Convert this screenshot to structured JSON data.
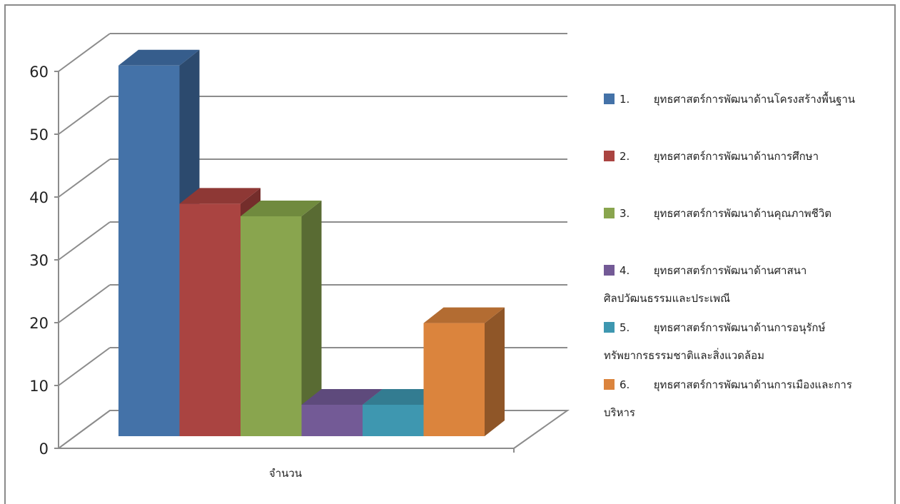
{
  "chart_data": {
    "type": "bar",
    "style": "3d-clustered-column",
    "categories": [
      "จำนวน"
    ],
    "ylim": [
      0,
      60
    ],
    "yticks": [
      0,
      10,
      20,
      30,
      40,
      50,
      60
    ],
    "grid": true,
    "legend_position": "right",
    "series": [
      {
        "name": "1.       ยุทธศาสตร์การพัฒนาด้านโครงสร้างพื้นฐาน",
        "legend_lines": [
          "1.       ยุทธศาสตร์การพัฒนาด้านโครงสร้างพื้นฐาน"
        ],
        "values": [
          59
        ],
        "color": "#4472A8",
        "side": "#2C4A6E",
        "top": "#365D8C"
      },
      {
        "name": "2.       ยุทธศาสตร์การพัฒนาด้านการศึกษา",
        "legend_lines": [
          "2.       ยุทธศาสตร์การพัฒนาด้านการศึกษา"
        ],
        "values": [
          37
        ],
        "color": "#AA4441",
        "side": "#742D2B",
        "top": "#8E3835"
      },
      {
        "name": "3.       ยุทธศาสตร์การพัฒนาด้านคุณภาพชีวิต",
        "legend_lines": [
          "3.       ยุทธศาสตร์การพัฒนาด้านคุณภาพชีวิต"
        ],
        "values": [
          35
        ],
        "color": "#89A54E",
        "side": "#596B33",
        "top": "#708A3E"
      },
      {
        "name": "4.       ยุทธศาสตร์การพัฒนาด้านศาสนา ศิลปวัฒนธรรมและประเพณี",
        "legend_lines": [
          "4.       ยุทธศาสตร์การพัฒนาด้านศาสนา",
          "ศิลปวัฒนธรรมและประเพณี"
        ],
        "values": [
          5
        ],
        "color": "#735A96",
        "side": "#4B3A62",
        "top": "#5E4A7C"
      },
      {
        "name": "5.       ยุทธศาสตร์การพัฒนาด้านการอนุรักษ์ ทรัพยากรธรรมชาติและสิ่งแวดล้อม",
        "legend_lines": [
          "5.       ยุทธศาสตร์การพัฒนาด้านการอนุรักษ์",
          "ทรัพยากรธรรมชาติและสิ่งแวดล้อม"
        ],
        "values": [
          5
        ],
        "color": "#3E97B0",
        "side": "#286273",
        "top": "#337C91"
      },
      {
        "name": "6.       ยุทธศาสตร์การพัฒนาด้านการเมืองและการ บริหาร",
        "legend_lines": [
          "6.       ยุทธศาสตร์การพัฒนาด้านการเมืองและการ",
          "บริหาร"
        ],
        "values": [
          18
        ],
        "color": "#DB843D",
        "side": "#8F5628",
        "top": "#B36C32"
      }
    ]
  }
}
